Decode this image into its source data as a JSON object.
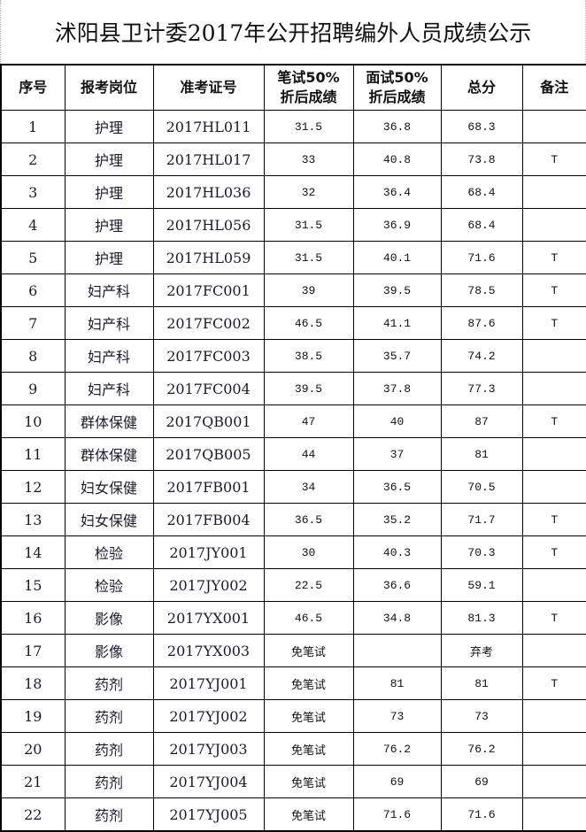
{
  "title": "沭阳县卫计委2017年公开招聘编外人员成绩公示",
  "headers": [
    "序号",
    "报考岗位",
    "准考证号",
    "笔试50%\n折后成绩",
    "面试50%\n折后成绩",
    "总分",
    "备注"
  ],
  "rows": [
    [
      "1",
      "护理",
      "2017HL011",
      "31.5",
      "36.8",
      "68.3",
      ""
    ],
    [
      "2",
      "护理",
      "2017HL017",
      "33",
      "40.8",
      "73.8",
      "T"
    ],
    [
      "3",
      "护理",
      "2017HL036",
      "32",
      "36.4",
      "68.4",
      ""
    ],
    [
      "4",
      "护理",
      "2017HL056",
      "31.5",
      "36.9",
      "68.4",
      ""
    ],
    [
      "5",
      "护理",
      "2017HL059",
      "31.5",
      "40.1",
      "71.6",
      "T"
    ],
    [
      "6",
      "妇产科",
      "2017FC001",
      "39",
      "39.5",
      "78.5",
      "T"
    ],
    [
      "7",
      "妇产科",
      "2017FC002",
      "46.5",
      "41.1",
      "87.6",
      "T"
    ],
    [
      "8",
      "妇产科",
      "2017FC003",
      "38.5",
      "35.7",
      "74.2",
      ""
    ],
    [
      "9",
      "妇产科",
      "2017FC004",
      "39.5",
      "37.8",
      "77.3",
      ""
    ],
    [
      "10",
      "群体保健",
      "2017QB001",
      "47",
      "40",
      "87",
      "T"
    ],
    [
      "11",
      "群体保健",
      "2017QB005",
      "44",
      "37",
      "81",
      ""
    ],
    [
      "12",
      "妇女保健",
      "2017FB001",
      "34",
      "36.5",
      "70.5",
      ""
    ],
    [
      "13",
      "妇女保健",
      "2017FB004",
      "36.5",
      "35.2",
      "71.7",
      "T"
    ],
    [
      "14",
      "检验",
      "2017JY001",
      "30",
      "40.3",
      "70.3",
      "T"
    ],
    [
      "15",
      "检验",
      "2017JY002",
      "22.5",
      "36.6",
      "59.1",
      ""
    ],
    [
      "16",
      "影像",
      "2017YX001",
      "46.5",
      "34.8",
      "81.3",
      "T"
    ],
    [
      "17",
      "影像",
      "2017YX003",
      "免笔试",
      "",
      "弃考",
      ""
    ],
    [
      "18",
      "药剂",
      "2017YJ001",
      "免笔试",
      "81",
      "81",
      "T"
    ],
    [
      "19",
      "药剂",
      "2017YJ002",
      "免笔试",
      "73",
      "73",
      ""
    ],
    [
      "20",
      "药剂",
      "2017YJ003",
      "免笔试",
      "76.2",
      "76.2",
      ""
    ],
    [
      "21",
      "药剂",
      "2017YJ004",
      "免笔试",
      "69",
      "69",
      ""
    ],
    [
      "22",
      "药剂",
      "2017YJ005",
      "免笔试",
      "71.6",
      "71.6",
      ""
    ]
  ]
}
